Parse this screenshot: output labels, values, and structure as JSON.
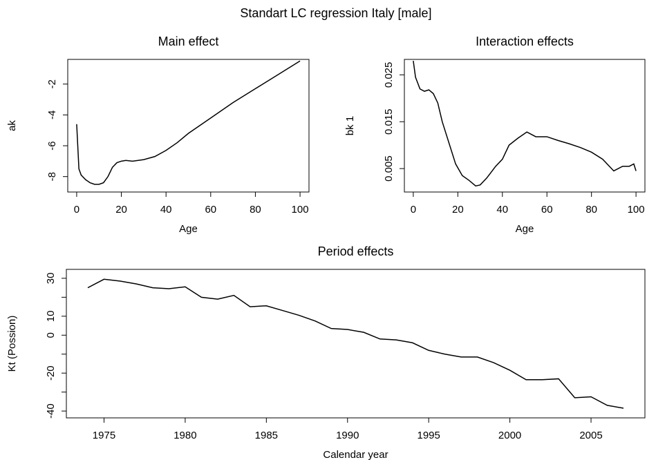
{
  "title": "Standart LC regression Italy [male]",
  "chart_data": [
    {
      "type": "line",
      "title": "Main effect",
      "xlabel": "Age",
      "ylabel": "ak",
      "x": [
        0,
        1,
        2,
        4,
        6,
        8,
        10,
        12,
        14,
        16,
        18,
        20,
        22,
        25,
        30,
        35,
        40,
        45,
        50,
        60,
        70,
        80,
        90,
        100
      ],
      "series": [
        {
          "name": "ak",
          "color": "#000000",
          "values": [
            -4.6,
            -7.5,
            -7.9,
            -8.2,
            -8.4,
            -8.5,
            -8.5,
            -8.4,
            -8.0,
            -7.4,
            -7.1,
            -7.0,
            -6.95,
            -7.0,
            -6.9,
            -6.7,
            -6.3,
            -5.8,
            -5.2,
            -4.2,
            -3.2,
            -2.3,
            -1.4,
            -0.5
          ]
        }
      ],
      "xlim": [
        -4,
        104
      ],
      "ylim": [
        -9,
        -0.4
      ],
      "xticks": [
        0,
        20,
        40,
        60,
        80,
        100
      ],
      "yticks": [
        -8,
        -6,
        -4,
        -2
      ]
    },
    {
      "type": "line",
      "title": "Interaction effects",
      "xlabel": "Age",
      "ylabel": "bk 1",
      "x": [
        0,
        1,
        3,
        5,
        7,
        9,
        11,
        13,
        16,
        19,
        22,
        25,
        28,
        30,
        33,
        37,
        40,
        43,
        47,
        51,
        55,
        60,
        65,
        70,
        75,
        80,
        85,
        90,
        94,
        97,
        99,
        100
      ],
      "series": [
        {
          "name": "bk 1",
          "color": "#000000",
          "values": [
            0.028,
            0.0245,
            0.022,
            0.0215,
            0.0218,
            0.021,
            0.019,
            0.015,
            0.0105,
            0.006,
            0.0035,
            0.0025,
            0.0013,
            0.0015,
            0.003,
            0.0055,
            0.007,
            0.01,
            0.0115,
            0.0128,
            0.0118,
            0.0118,
            0.011,
            0.0103,
            0.0095,
            0.0085,
            0.007,
            0.0045,
            0.0055,
            0.0055,
            0.006,
            0.0045
          ]
        }
      ],
      "xlim": [
        -4,
        104
      ],
      "ylim": [
        0,
        0.0283
      ],
      "xticks": [
        0,
        20,
        40,
        60,
        80,
        100
      ],
      "yticks": [
        0.005,
        0.015,
        0.025
      ]
    },
    {
      "type": "line",
      "title": "Period effects",
      "xlabel": "Calendar year",
      "ylabel": "Kt (Possion)",
      "x": [
        1974,
        1975,
        1976,
        1977,
        1978,
        1979,
        1980,
        1981,
        1982,
        1983,
        1984,
        1985,
        1986,
        1987,
        1988,
        1989,
        1990,
        1991,
        1992,
        1993,
        1994,
        1995,
        1996,
        1997,
        1998,
        1999,
        2000,
        2001,
        2002,
        2003,
        2004,
        2005,
        2006,
        2007
      ],
      "series": [
        {
          "name": "kt",
          "color": "#000000",
          "values": [
            25,
            29.5,
            28.5,
            27,
            25,
            24.5,
            25.5,
            20,
            19,
            21,
            15,
            15.5,
            13,
            10.5,
            7.5,
            3.5,
            3,
            1.5,
            -2,
            -2.5,
            -4,
            -8,
            -10,
            -11.5,
            -11.5,
            -14.5,
            -18.5,
            -23.5,
            -23.5,
            -23,
            -33,
            -32.5,
            -37,
            -38.5
          ]
        }
      ],
      "xlim": [
        1972.68,
        2008.32
      ],
      "ylim": [
        -43.6,
        34.7
      ],
      "xticks": [
        1975,
        1980,
        1985,
        1990,
        1995,
        2000,
        2005
      ],
      "yticks": [
        -40,
        -20,
        0,
        10,
        30
      ],
      "minor_yticks": [
        -30,
        -10,
        20
      ]
    }
  ]
}
